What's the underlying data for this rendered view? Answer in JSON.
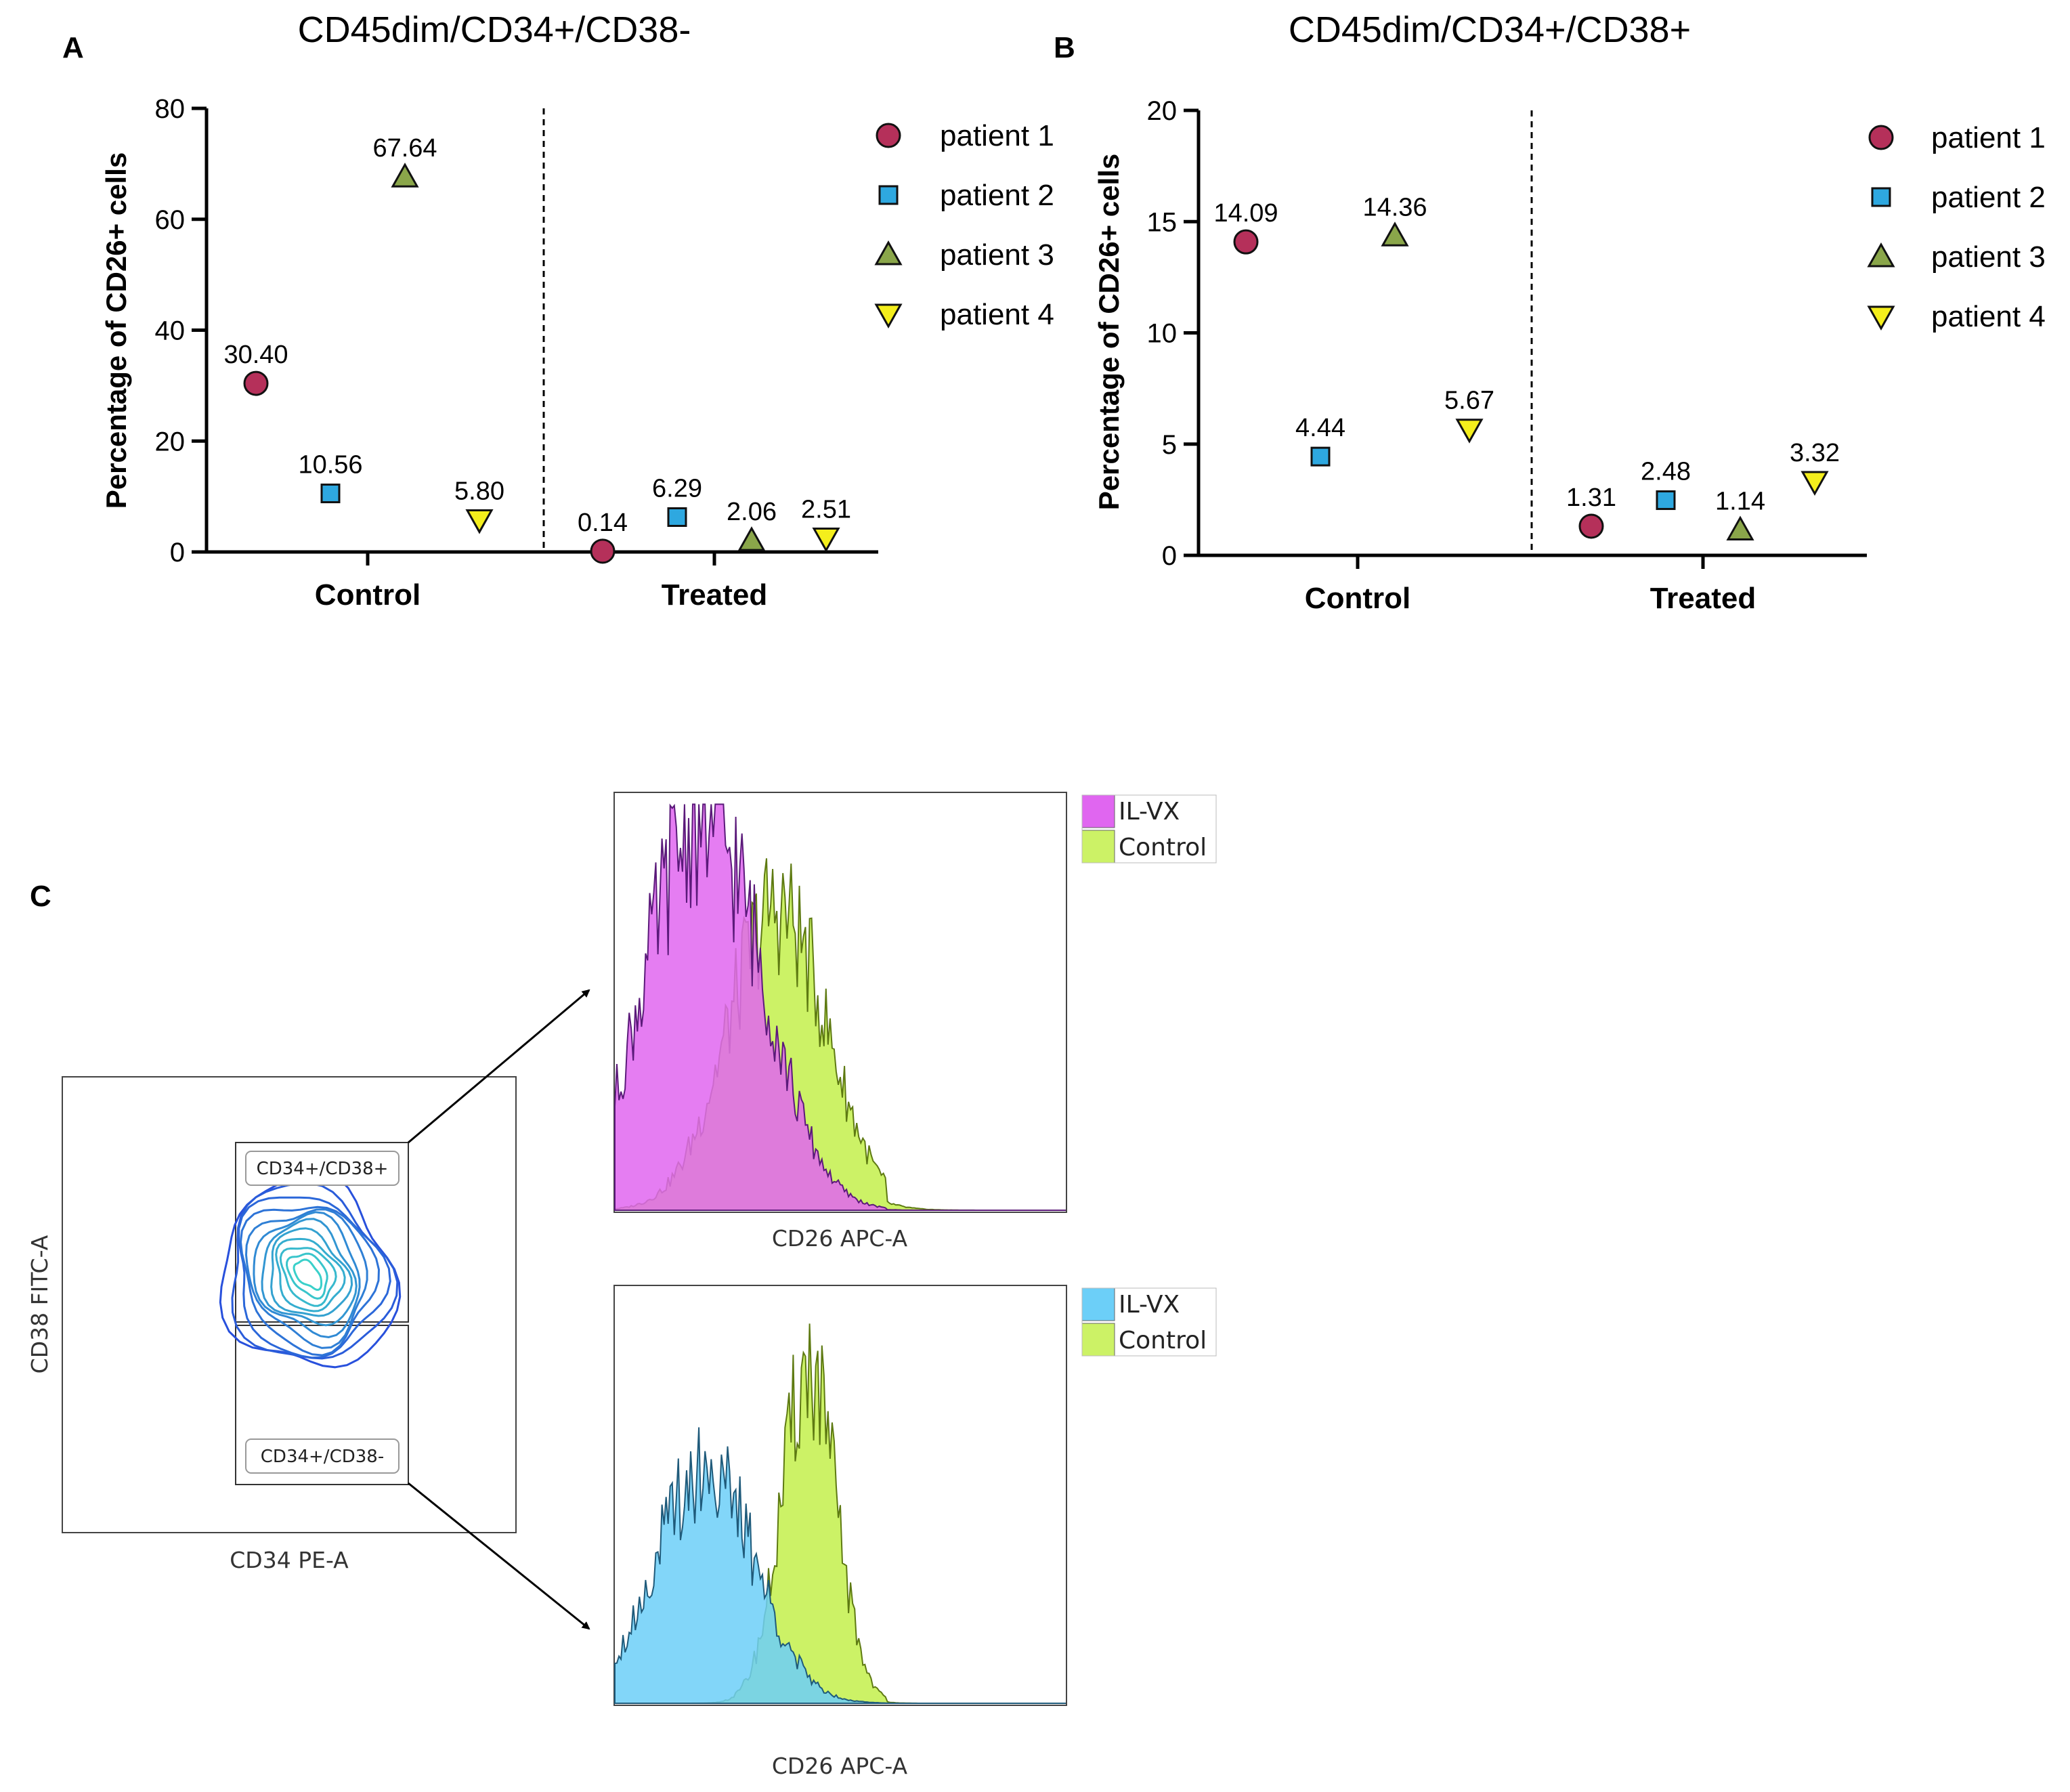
{
  "panels": {
    "a": "A",
    "b": "B",
    "c": "C"
  },
  "chart_data": [
    {
      "type": "scatter",
      "title": "CD45dim/CD34+/CD38-",
      "ylabel": "Percentage of  CD26+ cells",
      "xlabel": "",
      "categories": [
        "Control",
        "Treated"
      ],
      "ylim": [
        0,
        80
      ],
      "yticks": [
        0,
        20,
        40,
        60,
        80
      ],
      "legend_position": "right",
      "grid": false,
      "series": [
        {
          "name": "patient 1",
          "marker": "circle",
          "color": "#b5305a",
          "values": [
            30.4,
            0.14
          ],
          "labels": [
            "30.40",
            "0.14"
          ]
        },
        {
          "name": "patient 2",
          "marker": "square",
          "color": "#2ea8e0",
          "values": [
            10.56,
            6.29
          ],
          "labels": [
            "10.56",
            "6.29"
          ]
        },
        {
          "name": "patient 3",
          "marker": "triangle-up",
          "color": "#8aa64a",
          "values": [
            67.64,
            2.06
          ],
          "labels": [
            "67.64",
            "2.06"
          ]
        },
        {
          "name": "patient 4",
          "marker": "triangle-down",
          "color": "#f4ee1c",
          "values": [
            5.8,
            2.51
          ],
          "labels": [
            "5.80",
            "2.51"
          ]
        }
      ]
    },
    {
      "type": "scatter",
      "title": "CD45dim/CD34+/CD38+",
      "ylabel": "Percentage of  CD26+ cells",
      "xlabel": "",
      "categories": [
        "Control",
        "Treated"
      ],
      "ylim": [
        0,
        20
      ],
      "yticks": [
        0,
        5,
        10,
        15,
        20
      ],
      "legend_position": "right",
      "grid": false,
      "series": [
        {
          "name": "patient 1",
          "marker": "circle",
          "color": "#b5305a",
          "values": [
            14.09,
            1.31
          ],
          "labels": [
            "14.09",
            "1.31"
          ]
        },
        {
          "name": "patient 2",
          "marker": "square",
          "color": "#2ea8e0",
          "values": [
            4.44,
            2.48
          ],
          "labels": [
            "4.44",
            "2.48"
          ]
        },
        {
          "name": "patient 3",
          "marker": "triangle-up",
          "color": "#8aa64a",
          "values": [
            14.36,
            1.14
          ],
          "labels": [
            "14.36",
            "1.14"
          ]
        },
        {
          "name": "patient 4",
          "marker": "triangle-down",
          "color": "#f4ee1c",
          "values": [
            5.67,
            3.32
          ],
          "labels": [
            "5.67",
            "3.32"
          ]
        }
      ]
    }
  ],
  "cytometry": {
    "dot_plot": {
      "xlabel": "CD34 PE-A",
      "ylabel": "CD38 FITC-A",
      "gates": [
        "CD34+/CD38+",
        "CD34+/CD38-"
      ]
    },
    "histograms": [
      {
        "xlabel": "CD26 APC-A",
        "legend": [
          {
            "name": "IL-VX",
            "color": "#e066f0"
          },
          {
            "name": "Control",
            "color": "#ccf266"
          }
        ]
      },
      {
        "xlabel": "CD26 APC-A",
        "legend": [
          {
            "name": "IL-VX",
            "color": "#6ccff8"
          },
          {
            "name": "Control",
            "color": "#ccf266"
          }
        ]
      }
    ]
  }
}
